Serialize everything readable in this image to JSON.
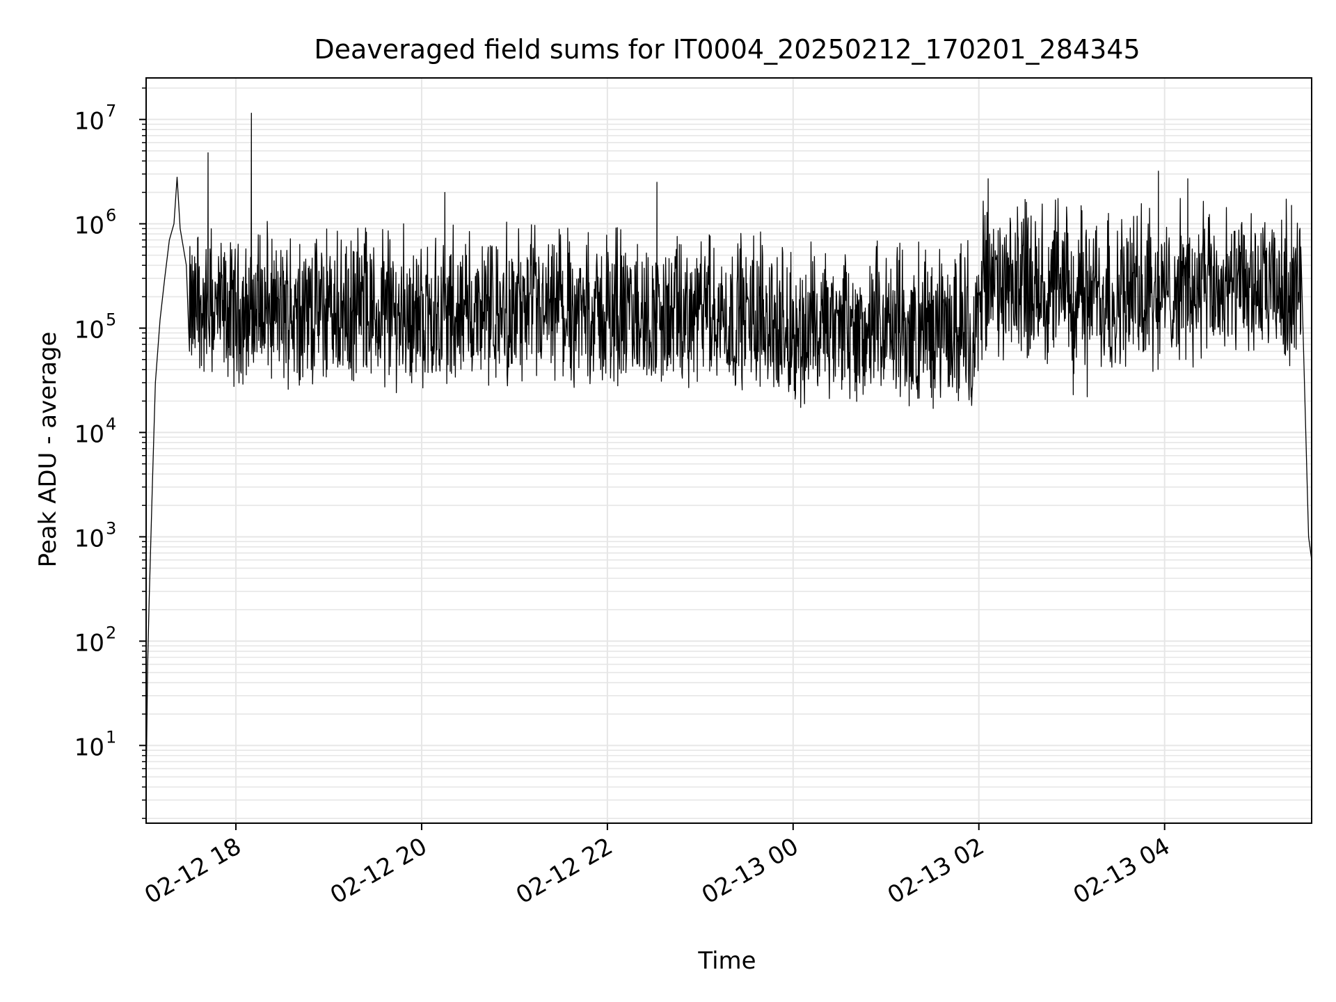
{
  "chart_data": {
    "type": "line",
    "title": "Deaveraged field sums for IT0004_20250212_170201_284345",
    "xlabel": "Time",
    "ylabel": "Peak ADU - average",
    "yscale": "log",
    "ylim": [
      1.8,
      25000000
    ],
    "xlim": [
      "2025-02-12 17:02",
      "2025-02-13 05:35"
    ],
    "grid": true,
    "grid_minor": true,
    "line_color": "#000000",
    "grid_color": "#e6e6e6",
    "x_ticks": [
      "2025-02-12 18:00",
      "2025-02-12 20:00",
      "2025-02-12 22:00",
      "2025-02-13 00:00",
      "2025-02-13 02:00",
      "2025-02-13 04:00"
    ],
    "x_tick_labels": [
      "02-12 18",
      "02-12 20",
      "02-12 22",
      "02-13 00",
      "02-13 02",
      "02-13 04"
    ],
    "y_ticks": [
      {
        "value": 10,
        "base": "10",
        "exp": "1"
      },
      {
        "value": 100,
        "base": "10",
        "exp": "2"
      },
      {
        "value": 1000,
        "base": "10",
        "exp": "3"
      },
      {
        "value": 10000,
        "base": "10",
        "exp": "4"
      },
      {
        "value": 100000,
        "base": "10",
        "exp": "5"
      },
      {
        "value": 1000000,
        "base": "10",
        "exp": "6"
      },
      {
        "value": 10000000,
        "base": "10",
        "exp": "7"
      }
    ],
    "series": [
      {
        "points": [
          [
            "2025-02-12 17:02",
            4
          ],
          [
            "2025-02-12 17:03",
            60
          ],
          [
            "2025-02-12 17:04",
            250
          ],
          [
            "2025-02-12 17:06",
            3000
          ],
          [
            "2025-02-12 17:08",
            30000
          ],
          [
            "2025-02-12 17:11",
            120000
          ],
          [
            "2025-02-12 17:14",
            300000
          ],
          [
            "2025-02-12 17:17",
            700000
          ],
          [
            "2025-02-12 17:20",
            1000000
          ],
          [
            "2025-02-12 17:22",
            2800000
          ],
          [
            "2025-02-12 17:24",
            900000
          ],
          [
            "2025-02-12 17:28",
            400000
          ],
          [
            "2025-02-12 17:30",
            60000
          ],
          [
            "2025-02-12 17:42",
            4800000
          ],
          [
            "2025-02-12 18:10",
            11500000
          ],
          [
            "2025-02-12 20:15",
            2000000
          ],
          [
            "2025-02-12 22:32",
            2500000
          ],
          [
            "2025-02-12 23:50",
            30000
          ],
          [
            "2025-02-13 00:40",
            25000
          ],
          [
            "2025-02-13 01:15",
            18000
          ],
          [
            "2025-02-13 01:55",
            22000
          ],
          [
            "2025-02-13 02:06",
            2700000
          ],
          [
            "2025-02-13 03:01",
            23000
          ],
          [
            "2025-02-13 03:10",
            22000
          ],
          [
            "2025-02-13 03:56",
            3200000
          ],
          [
            "2025-02-13 04:15",
            2700000
          ],
          [
            "2025-02-13 05:22",
            1500000
          ],
          [
            "2025-02-13 05:28",
            600000
          ],
          [
            "2025-02-13 05:33",
            1000
          ],
          [
            "2025-02-13 05:35",
            600
          ]
        ],
        "note_values": "Main body fluctuates between about 4e4 and 9e5 with occasional spikes; drawn densely between listed anchor points."
      }
    ]
  }
}
